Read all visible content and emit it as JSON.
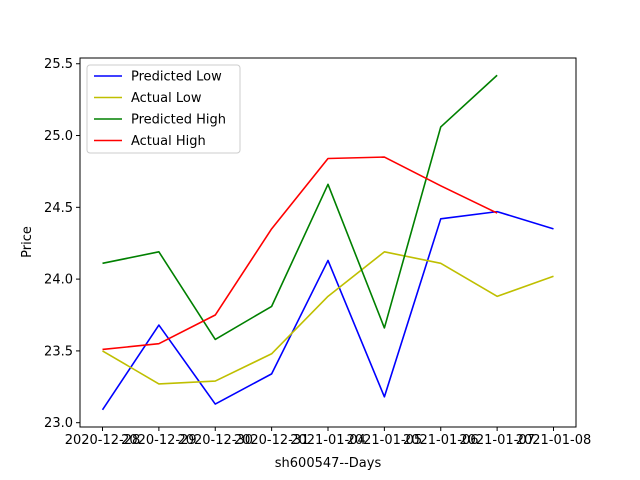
{
  "chart_data": {
    "type": "line",
    "xlabel": "sh600547--Days",
    "ylabel": "Price",
    "x": [
      "2020-12-28",
      "2020-12-29",
      "2020-12-30",
      "2020-12-31",
      "2021-01-04",
      "2021-01-05",
      "2021-01-06",
      "2021-01-07",
      "2021-01-08"
    ],
    "ylim": [
      22.97,
      25.54
    ],
    "yticks": [
      "23.0",
      "23.5",
      "24.0",
      "24.5",
      "25.0",
      "25.5"
    ],
    "grid": false,
    "legend_position": "top-left",
    "series": [
      {
        "name": "Predicted Low",
        "color": "#0000ff",
        "values": [
          23.09,
          23.68,
          23.13,
          23.34,
          24.13,
          23.18,
          24.42,
          24.47,
          24.35
        ]
      },
      {
        "name": "Actual Low",
        "color": "#bfbf00",
        "values": [
          23.5,
          23.27,
          23.29,
          23.48,
          23.88,
          24.19,
          24.11,
          23.88,
          24.02
        ]
      },
      {
        "name": "Predicted High",
        "color": "#008000",
        "values": [
          24.11,
          24.19,
          23.58,
          23.81,
          24.66,
          23.66,
          25.06,
          25.42,
          null
        ]
      },
      {
        "name": "Actual High",
        "color": "#ff0000",
        "values": [
          23.51,
          23.55,
          23.75,
          24.35,
          24.84,
          24.85,
          24.65,
          24.46,
          null
        ]
      }
    ]
  }
}
